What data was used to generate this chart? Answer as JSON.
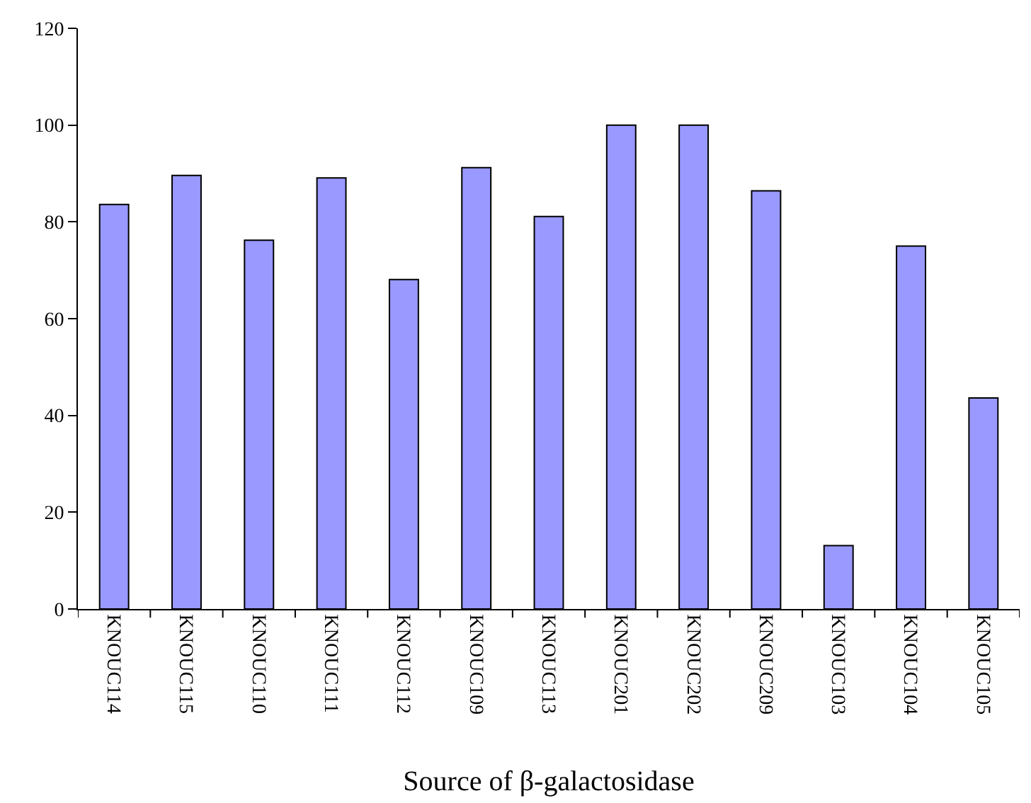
{
  "chart_data": {
    "type": "bar",
    "xlabel": "Source of β-galactosidase",
    "categories": [
      "KNOUC114",
      "KNOUC115",
      "KNOUC110",
      "KNOUC111",
      "KNOUC112",
      "KNOUC109",
      "KNOUC113",
      "KNOUC201",
      "KNOUC202",
      "KNOUC209",
      "KNOUC103",
      "KNOUC104",
      "KNOUC105"
    ],
    "values": [
      83.6,
      89.6,
      76.2,
      89.1,
      68.1,
      91.2,
      81.1,
      100,
      100,
      86.4,
      13.1,
      75.0,
      43.6
    ],
    "color": "#9999ff",
    "ylim": [
      0,
      120
    ],
    "yticks": [
      0,
      20,
      40,
      60,
      80,
      100,
      120
    ]
  }
}
